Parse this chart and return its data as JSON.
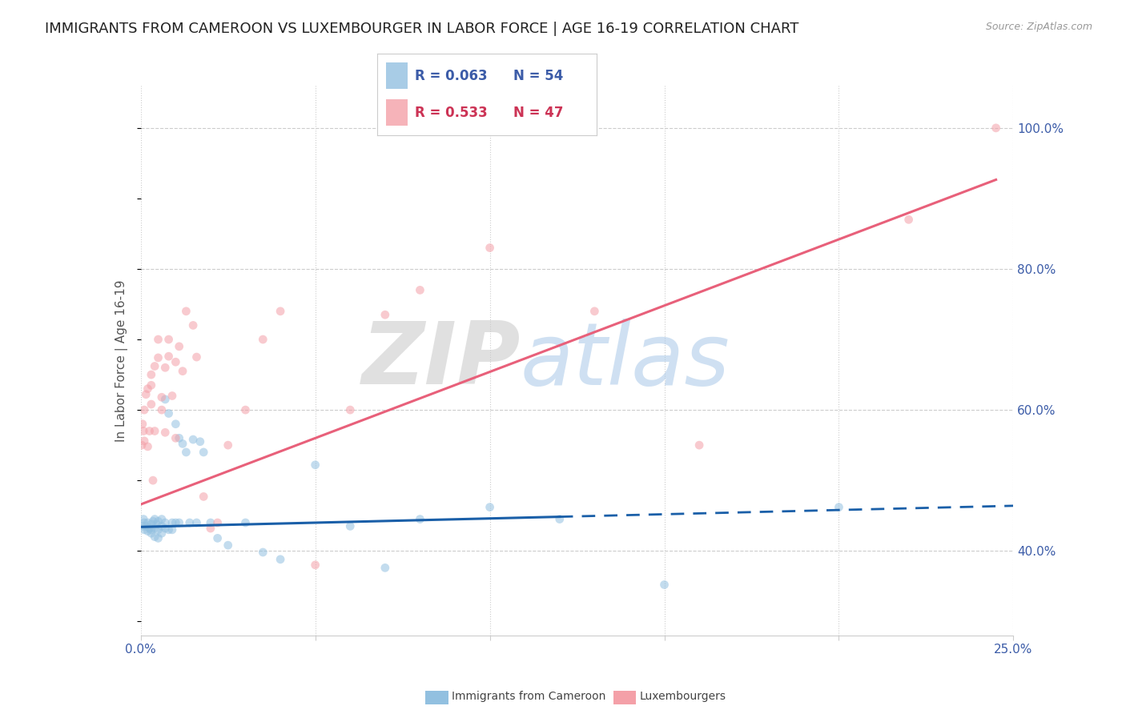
{
  "title": "IMMIGRANTS FROM CAMEROON VS LUXEMBOURGER IN LABOR FORCE | AGE 16-19 CORRELATION CHART",
  "source": "Source: ZipAtlas.com",
  "ylabel": "In Labor Force | Age 16-19",
  "watermark_zip": "ZIP",
  "watermark_atlas": "atlas",
  "xlim": [
    0.0,
    0.25
  ],
  "ylim": [
    0.28,
    1.06
  ],
  "xtick_positions": [
    0.0,
    0.05,
    0.1,
    0.15,
    0.2,
    0.25
  ],
  "xtick_labels": [
    "0.0%",
    "",
    "",
    "",
    "",
    "25.0%"
  ],
  "ytick_positions": [
    0.4,
    0.6,
    0.8,
    1.0
  ],
  "ytick_labels": [
    "40.0%",
    "60.0%",
    "80.0%",
    "100.0%"
  ],
  "cameroon_color": "#92c0e0",
  "cameroon_label": "Immigrants from Cameroon",
  "cameroon_R": "0.063",
  "cameroon_N": "54",
  "lux_color": "#f4a0a8",
  "lux_label": "Luxembourgers",
  "lux_R": "0.533",
  "lux_N": "47",
  "trend_blue_color": "#1a5fa8",
  "trend_pink_color": "#e8607a",
  "cameroon_x": [
    0.0005,
    0.0008,
    0.001,
    0.001,
    0.0015,
    0.002,
    0.002,
    0.0025,
    0.003,
    0.003,
    0.003,
    0.0035,
    0.004,
    0.004,
    0.004,
    0.0045,
    0.005,
    0.005,
    0.005,
    0.006,
    0.006,
    0.006,
    0.007,
    0.007,
    0.007,
    0.008,
    0.008,
    0.009,
    0.009,
    0.01,
    0.01,
    0.011,
    0.011,
    0.012,
    0.013,
    0.014,
    0.015,
    0.016,
    0.017,
    0.018,
    0.02,
    0.022,
    0.025,
    0.03,
    0.035,
    0.04,
    0.05,
    0.06,
    0.07,
    0.08,
    0.1,
    0.12,
    0.15,
    0.2
  ],
  "cameroon_y": [
    0.435,
    0.445,
    0.44,
    0.43,
    0.435,
    0.44,
    0.428,
    0.432,
    0.438,
    0.43,
    0.425,
    0.442,
    0.445,
    0.432,
    0.42,
    0.438,
    0.442,
    0.43,
    0.418,
    0.445,
    0.435,
    0.425,
    0.615,
    0.44,
    0.432,
    0.595,
    0.43,
    0.44,
    0.43,
    0.58,
    0.44,
    0.56,
    0.44,
    0.552,
    0.54,
    0.44,
    0.558,
    0.44,
    0.555,
    0.54,
    0.44,
    0.418,
    0.408,
    0.44,
    0.398,
    0.388,
    0.522,
    0.435,
    0.376,
    0.445,
    0.462,
    0.445,
    0.352,
    0.462
  ],
  "lux_x": [
    0.0003,
    0.0005,
    0.0008,
    0.001,
    0.001,
    0.0015,
    0.002,
    0.002,
    0.0025,
    0.003,
    0.003,
    0.003,
    0.0035,
    0.004,
    0.004,
    0.005,
    0.005,
    0.006,
    0.006,
    0.007,
    0.007,
    0.008,
    0.008,
    0.009,
    0.01,
    0.01,
    0.011,
    0.012,
    0.013,
    0.015,
    0.016,
    0.018,
    0.02,
    0.022,
    0.025,
    0.03,
    0.035,
    0.04,
    0.05,
    0.06,
    0.07,
    0.08,
    0.1,
    0.13,
    0.16,
    0.22,
    0.245
  ],
  "lux_y": [
    0.55,
    0.58,
    0.57,
    0.556,
    0.6,
    0.622,
    0.548,
    0.63,
    0.57,
    0.635,
    0.65,
    0.608,
    0.5,
    0.662,
    0.57,
    0.7,
    0.674,
    0.618,
    0.6,
    0.66,
    0.568,
    0.7,
    0.676,
    0.62,
    0.668,
    0.56,
    0.69,
    0.655,
    0.74,
    0.72,
    0.675,
    0.477,
    0.432,
    0.44,
    0.55,
    0.6,
    0.7,
    0.74,
    0.38,
    0.6,
    0.735,
    0.77,
    0.83,
    0.74,
    0.55,
    0.87,
    1.0
  ],
  "cam_trend_intercept": 0.434,
  "cam_trend_slope": 0.12,
  "cam_trend_solid_end": 0.12,
  "lux_trend_intercept": 0.466,
  "lux_trend_slope": 1.88,
  "lux_trend_end": 0.245,
  "background_color": "#ffffff",
  "grid_color": "#cccccc",
  "title_fontsize": 13,
  "source_fontsize": 9,
  "tick_fontsize": 11,
  "ylabel_fontsize": 11,
  "marker_size": 60,
  "marker_alpha": 0.55
}
